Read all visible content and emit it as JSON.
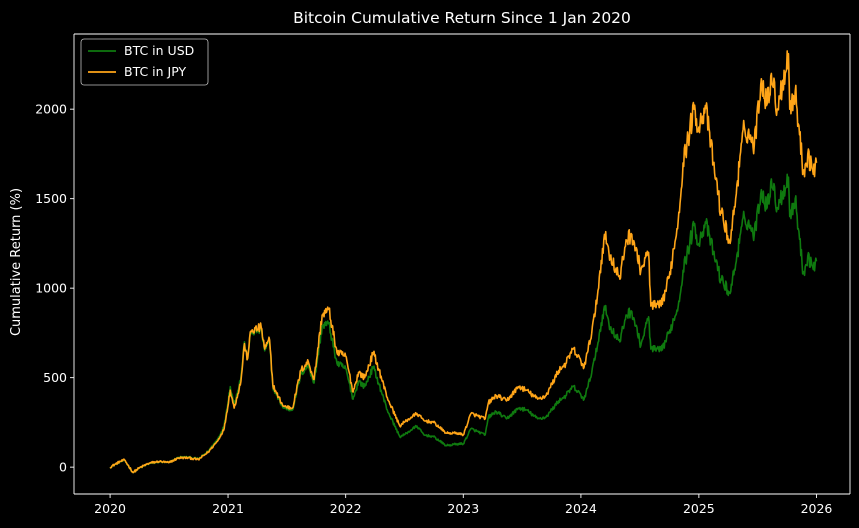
{
  "chart_data": {
    "type": "line",
    "title": "Bitcoin Cumulative Return Since 1 Jan 2020",
    "xlabel": "",
    "ylabel": "Cumulative Return (%)",
    "xlim": [
      "2019-09-11",
      "2026-04-15"
    ],
    "ylim": [
      -150,
      2420
    ],
    "x_ticks": [
      "2020",
      "2021",
      "2022",
      "2023",
      "2024",
      "2025",
      "2026"
    ],
    "y_ticks": [
      0,
      500,
      1000,
      1500,
      2000
    ],
    "grid": false,
    "legend_position": "top-left",
    "background": "#000000",
    "series": [
      {
        "name": "BTC in USD",
        "color": "#0f7a0f",
        "points": [
          [
            "2020-01-01",
            0
          ],
          [
            "2020-02-01",
            30
          ],
          [
            "2020-02-15",
            38
          ],
          [
            "2020-03-12",
            -30
          ],
          [
            "2020-04-01",
            -5
          ],
          [
            "2020-05-01",
            20
          ],
          [
            "2020-06-01",
            30
          ],
          [
            "2020-07-01",
            25
          ],
          [
            "2020-08-01",
            55
          ],
          [
            "2020-09-01",
            55
          ],
          [
            "2020-10-01",
            45
          ],
          [
            "2020-11-01",
            90
          ],
          [
            "2020-12-01",
            160
          ],
          [
            "2020-12-20",
            230
          ],
          [
            "2021-01-08",
            450
          ],
          [
            "2021-01-20",
            350
          ],
          [
            "2021-02-10",
            500
          ],
          [
            "2021-02-21",
            700
          ],
          [
            "2021-03-01",
            600
          ],
          [
            "2021-03-13",
            750
          ],
          [
            "2021-04-14",
            770
          ],
          [
            "2021-04-25",
            650
          ],
          [
            "2021-05-10",
            700
          ],
          [
            "2021-05-20",
            450
          ],
          [
            "2021-06-01",
            400
          ],
          [
            "2021-06-22",
            330
          ],
          [
            "2021-07-20",
            320
          ],
          [
            "2021-08-15",
            520
          ],
          [
            "2021-09-07",
            570
          ],
          [
            "2021-09-25",
            470
          ],
          [
            "2021-10-20",
            790
          ],
          [
            "2021-11-10",
            800
          ],
          [
            "2021-12-05",
            580
          ],
          [
            "2022-01-01",
            550
          ],
          [
            "2022-01-24",
            380
          ],
          [
            "2022-02-10",
            480
          ],
          [
            "2022-03-01",
            450
          ],
          [
            "2022-03-28",
            560
          ],
          [
            "2022-04-15",
            460
          ],
          [
            "2022-05-10",
            320
          ],
          [
            "2022-06-18",
            170
          ],
          [
            "2022-07-01",
            180
          ],
          [
            "2022-08-10",
            230
          ],
          [
            "2022-09-01",
            180
          ],
          [
            "2022-10-01",
            170
          ],
          [
            "2022-11-09",
            120
          ],
          [
            "2022-12-15",
            130
          ],
          [
            "2023-01-01",
            130
          ],
          [
            "2023-01-25",
            215
          ],
          [
            "2023-03-10",
            180
          ],
          [
            "2023-03-20",
            280
          ],
          [
            "2023-04-14",
            310
          ],
          [
            "2023-05-15",
            270
          ],
          [
            "2023-06-22",
            330
          ],
          [
            "2023-07-15",
            320
          ],
          [
            "2023-08-20",
            270
          ],
          [
            "2023-09-15",
            280
          ],
          [
            "2023-10-24",
            370
          ],
          [
            "2023-11-15",
            400
          ],
          [
            "2023-12-08",
            450
          ],
          [
            "2024-01-11",
            380
          ],
          [
            "2024-01-23",
            450
          ],
          [
            "2024-02-15",
            620
          ],
          [
            "2024-03-14",
            900
          ],
          [
            "2024-04-01",
            780
          ],
          [
            "2024-05-01",
            700
          ],
          [
            "2024-05-20",
            850
          ],
          [
            "2024-06-07",
            870
          ],
          [
            "2024-07-05",
            680
          ],
          [
            "2024-07-29",
            840
          ],
          [
            "2024-08-05",
            660
          ],
          [
            "2024-09-06",
            650
          ],
          [
            "2024-10-01",
            750
          ],
          [
            "2024-10-29",
            900
          ],
          [
            "2024-11-13",
            1100
          ],
          [
            "2024-12-17",
            1350
          ],
          [
            "2025-01-01",
            1250
          ],
          [
            "2025-01-21",
            1370
          ],
          [
            "2025-02-15",
            1200
          ],
          [
            "2025-03-10",
            1050
          ],
          [
            "2025-04-08",
            970
          ],
          [
            "2025-05-01",
            1200
          ],
          [
            "2025-05-22",
            1400
          ],
          [
            "2025-06-22",
            1300
          ],
          [
            "2025-07-14",
            1550
          ],
          [
            "2025-08-01",
            1450
          ],
          [
            "2025-08-14",
            1610
          ],
          [
            "2025-09-01",
            1450
          ],
          [
            "2025-10-06",
            1620
          ],
          [
            "2025-10-10",
            1400
          ],
          [
            "2025-10-27",
            1500
          ],
          [
            "2025-11-21",
            1080
          ],
          [
            "2025-12-05",
            1180
          ],
          [
            "2025-12-20",
            1120
          ],
          [
            "2026-01-01",
            1150
          ]
        ]
      },
      {
        "name": "BTC in JPY",
        "color": "#ffa518",
        "points": [
          [
            "2020-01-01",
            0
          ],
          [
            "2020-02-01",
            32
          ],
          [
            "2020-02-15",
            40
          ],
          [
            "2020-03-12",
            -30
          ],
          [
            "2020-04-01",
            -4
          ],
          [
            "2020-05-01",
            22
          ],
          [
            "2020-06-01",
            32
          ],
          [
            "2020-07-01",
            25
          ],
          [
            "2020-08-01",
            52
          ],
          [
            "2020-09-01",
            52
          ],
          [
            "2020-10-01",
            42
          ],
          [
            "2020-11-01",
            85
          ],
          [
            "2020-12-01",
            150
          ],
          [
            "2020-12-20",
            215
          ],
          [
            "2021-01-08",
            430
          ],
          [
            "2021-01-20",
            330
          ],
          [
            "2021-02-10",
            480
          ],
          [
            "2021-02-21",
            690
          ],
          [
            "2021-03-01",
            600
          ],
          [
            "2021-03-13",
            760
          ],
          [
            "2021-04-14",
            780
          ],
          [
            "2021-04-25",
            660
          ],
          [
            "2021-05-10",
            710
          ],
          [
            "2021-05-20",
            460
          ],
          [
            "2021-06-01",
            410
          ],
          [
            "2021-06-22",
            340
          ],
          [
            "2021-07-20",
            330
          ],
          [
            "2021-08-15",
            540
          ],
          [
            "2021-09-07",
            590
          ],
          [
            "2021-09-25",
            490
          ],
          [
            "2021-10-20",
            850
          ],
          [
            "2021-11-10",
            880
          ],
          [
            "2021-12-05",
            640
          ],
          [
            "2022-01-01",
            620
          ],
          [
            "2022-01-24",
            420
          ],
          [
            "2022-02-10",
            530
          ],
          [
            "2022-03-01",
            500
          ],
          [
            "2022-03-28",
            640
          ],
          [
            "2022-04-15",
            540
          ],
          [
            "2022-05-10",
            390
          ],
          [
            "2022-06-18",
            230
          ],
          [
            "2022-07-01",
            250
          ],
          [
            "2022-08-10",
            300
          ],
          [
            "2022-09-01",
            260
          ],
          [
            "2022-10-01",
            250
          ],
          [
            "2022-11-09",
            190
          ],
          [
            "2022-12-15",
            190
          ],
          [
            "2023-01-01",
            180
          ],
          [
            "2023-01-25",
            300
          ],
          [
            "2023-03-10",
            270
          ],
          [
            "2023-03-20",
            360
          ],
          [
            "2023-04-14",
            400
          ],
          [
            "2023-05-15",
            370
          ],
          [
            "2023-06-22",
            450
          ],
          [
            "2023-07-15",
            430
          ],
          [
            "2023-08-20",
            380
          ],
          [
            "2023-09-15",
            400
          ],
          [
            "2023-10-24",
            540
          ],
          [
            "2023-11-15",
            580
          ],
          [
            "2023-12-08",
            660
          ],
          [
            "2024-01-11",
            560
          ],
          [
            "2024-01-23",
            650
          ],
          [
            "2024-02-15",
            870
          ],
          [
            "2024-03-14",
            1300
          ],
          [
            "2024-04-01",
            1180
          ],
          [
            "2024-05-01",
            1050
          ],
          [
            "2024-05-20",
            1270
          ],
          [
            "2024-06-07",
            1300
          ],
          [
            "2024-07-05",
            1100
          ],
          [
            "2024-07-29",
            1200
          ],
          [
            "2024-08-05",
            900
          ],
          [
            "2024-09-06",
            900
          ],
          [
            "2024-10-01",
            1060
          ],
          [
            "2024-10-29",
            1380
          ],
          [
            "2024-11-13",
            1700
          ],
          [
            "2024-12-17",
            2000
          ],
          [
            "2025-01-01",
            1900
          ],
          [
            "2025-01-21",
            2020
          ],
          [
            "2025-02-15",
            1700
          ],
          [
            "2025-03-10",
            1430
          ],
          [
            "2025-04-08",
            1250
          ],
          [
            "2025-05-01",
            1600
          ],
          [
            "2025-05-22",
            1900
          ],
          [
            "2025-06-22",
            1800
          ],
          [
            "2025-07-14",
            2170
          ],
          [
            "2025-08-01",
            2030
          ],
          [
            "2025-08-14",
            2200
          ],
          [
            "2025-09-01",
            2000
          ],
          [
            "2025-10-06",
            2310
          ],
          [
            "2025-10-10",
            2000
          ],
          [
            "2025-10-27",
            2100
          ],
          [
            "2025-11-21",
            1650
          ],
          [
            "2025-12-05",
            1750
          ],
          [
            "2025-12-20",
            1660
          ],
          [
            "2026-01-01",
            1700
          ]
        ]
      }
    ]
  }
}
